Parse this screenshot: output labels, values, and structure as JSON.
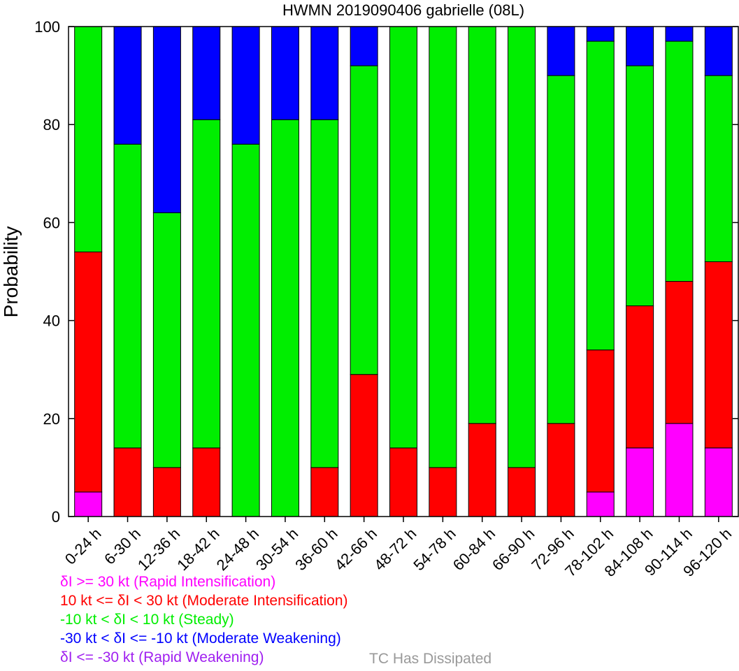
{
  "chart_data": {
    "type": "bar",
    "stacked": true,
    "title": "HWMN 2019090406 gabrielle (08L)",
    "xlabel": "",
    "ylabel": "Probability",
    "ylim": [
      0,
      100
    ],
    "yticks": [
      0,
      20,
      40,
      60,
      80,
      100
    ],
    "grid": false,
    "categories": [
      "0-24 h",
      "6-30 h",
      "12-36 h",
      "18-42 h",
      "24-48 h",
      "30-54 h",
      "36-60 h",
      "42-66 h",
      "48-72 h",
      "54-78 h",
      "60-84 h",
      "66-90 h",
      "72-96 h",
      "78-102 h",
      "84-108 h",
      "90-114 h",
      "96-120 h"
    ],
    "series": [
      {
        "name": "δI >= 30 kt (Rapid Intensification)",
        "color": "#ff00ff",
        "values": [
          5,
          0,
          0,
          0,
          0,
          0,
          0,
          0,
          0,
          0,
          0,
          0,
          0,
          5,
          14,
          19,
          14
        ]
      },
      {
        "name": "10 kt <= δI < 30 kt (Moderate Intensification)",
        "color": "#ff0000",
        "values": [
          49,
          14,
          10,
          14,
          0,
          0,
          10,
          29,
          14,
          10,
          19,
          10,
          19,
          29,
          29,
          29,
          38
        ]
      },
      {
        "name": "-10 kt < δI < 10 kt (Steady)",
        "color": "#00ee00",
        "values": [
          46,
          62,
          52,
          67,
          76,
          81,
          71,
          63,
          86,
          90,
          81,
          90,
          71,
          63,
          49,
          49,
          38
        ]
      },
      {
        "name": "-30 kt < δI <= -10 kt (Moderate Weakening)",
        "color": "#0000ff",
        "values": [
          0,
          24,
          38,
          19,
          24,
          19,
          19,
          8,
          0,
          0,
          0,
          0,
          10,
          3,
          8,
          3,
          10
        ]
      },
      {
        "name": "δI <= -30 kt (Rapid Weakening)",
        "color": "#a020f0",
        "values": [
          0,
          0,
          0,
          0,
          0,
          0,
          0,
          0,
          0,
          0,
          0,
          0,
          0,
          0,
          0,
          0,
          0
        ]
      }
    ],
    "extra_label": {
      "text": "TC Has Dissipated",
      "color": "#999999"
    }
  }
}
